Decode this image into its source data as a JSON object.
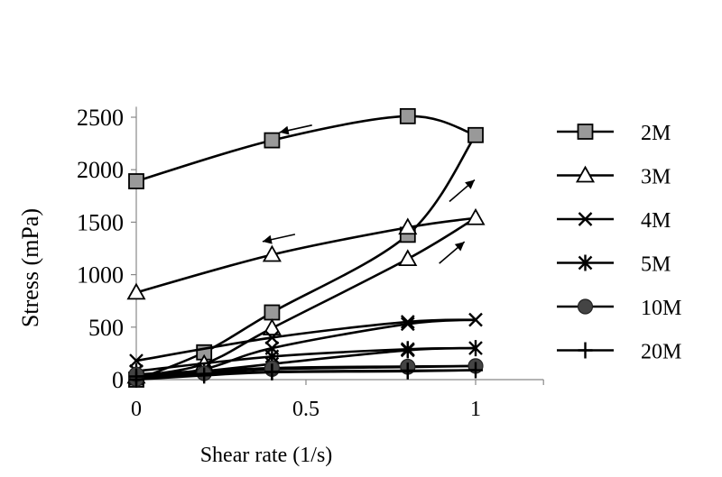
{
  "chart_data": {
    "type": "line",
    "xlabel": "Shear rate (1/s)",
    "ylabel": "Stress (mPa)",
    "xlim": [
      0,
      1.2
    ],
    "ylim": [
      0,
      2600
    ],
    "xticks": [
      0,
      0.5,
      1
    ],
    "xtick_labels": [
      "0",
      "0.5",
      "1"
    ],
    "yticks": [
      0,
      500,
      1000,
      1500,
      2000,
      2500
    ],
    "ytick_labels": [
      "0",
      "500",
      "1000",
      "1500",
      "2000",
      "2500"
    ],
    "grid": false,
    "legend_position": "right",
    "series": [
      {
        "name": "2M",
        "marker": "square",
        "up": {
          "x": [
            0,
            0.2,
            0.4,
            0.8,
            1
          ],
          "y": [
            0,
            260,
            640,
            1380,
            2330
          ]
        },
        "down": {
          "x": [
            1,
            0.8,
            0.4,
            0
          ],
          "y": [
            2330,
            2510,
            2280,
            1890
          ]
        }
      },
      {
        "name": "3M",
        "marker": "triangle",
        "up": {
          "x": [
            0,
            0.2,
            0.4,
            0.8,
            1
          ],
          "y": [
            30,
            150,
            490,
            1150,
            1540
          ]
        },
        "down": {
          "x": [
            1,
            0.8,
            0.4,
            0
          ],
          "y": [
            1540,
            1450,
            1190,
            830
          ]
        }
      },
      {
        "name": "4M",
        "marker": "x",
        "up": {
          "x": [
            0,
            0.2,
            0.4,
            0.8,
            1
          ],
          "y": [
            20,
            100,
            300,
            530,
            570
          ]
        },
        "down": {
          "x": [
            1,
            0.8,
            0.4,
            0
          ],
          "y": [
            570,
            550,
            400,
            180
          ]
        }
      },
      {
        "name": "5M",
        "marker": "asterisk",
        "up": {
          "x": [
            0,
            0.2,
            0.4,
            0.8,
            1
          ],
          "y": [
            10,
            80,
            150,
            280,
            300
          ]
        },
        "down": {
          "x": [
            1,
            0.8,
            0.4,
            0
          ],
          "y": [
            300,
            290,
            220,
            80
          ]
        }
      },
      {
        "name": "10M",
        "marker": "circle",
        "up": {
          "x": [
            0,
            0.2,
            0.4,
            0.8,
            1
          ],
          "y": [
            5,
            60,
            100,
            120,
            130
          ]
        },
        "down": {
          "x": [
            1,
            0.8,
            0.4,
            0
          ],
          "y": [
            130,
            125,
            110,
            50
          ]
        }
      },
      {
        "name": "20M",
        "marker": "plus",
        "up": {
          "x": [
            0,
            0.2,
            0.4,
            0.8,
            1
          ],
          "y": [
            0,
            40,
            70,
            80,
            90
          ]
        },
        "down": {
          "x": [
            1,
            0.8,
            0.4,
            0
          ],
          "y": [
            90,
            85,
            75,
            30
          ]
        }
      }
    ],
    "annotations": [
      {
        "type": "arrow",
        "direction": "left",
        "near_series": "2M",
        "near": [
          0.47,
          2390
        ]
      },
      {
        "type": "arrow",
        "direction": "left",
        "near_series": "3M",
        "near": [
          0.42,
          1350
        ]
      },
      {
        "type": "arrow",
        "direction": "up-right",
        "near_series": "2M",
        "near": [
          0.96,
          1800
        ]
      },
      {
        "type": "arrow",
        "direction": "up-right",
        "near_series": "3M",
        "near": [
          0.93,
          1210
        ]
      }
    ],
    "colors": {
      "line": "#000000",
      "marker_fill_square": "#999999",
      "marker_fill_circle": "#444444",
      "marker_fill_triangle": "#ffffff"
    }
  }
}
